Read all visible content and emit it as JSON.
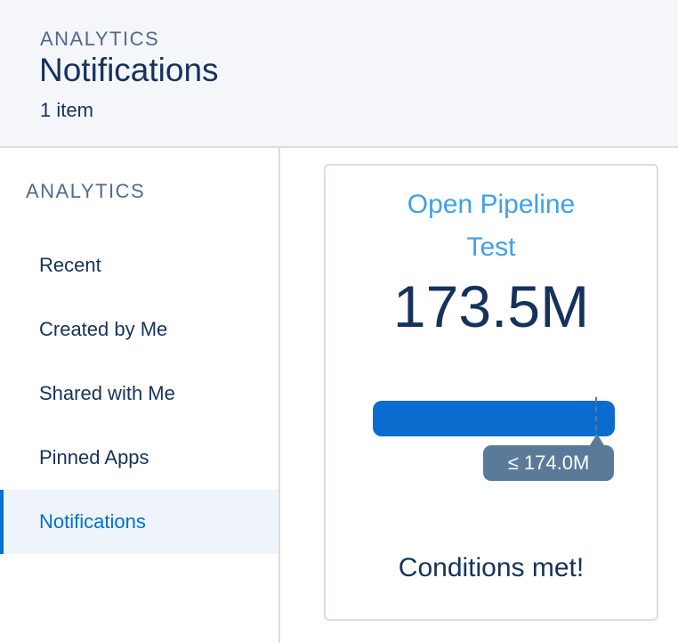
{
  "header": {
    "eyebrow": "ANALYTICS",
    "title": "Notifications",
    "count": "1 item"
  },
  "sidebar": {
    "section": "ANALYTICS",
    "items": [
      {
        "label": "Recent",
        "active": false
      },
      {
        "label": "Created by Me",
        "active": false
      },
      {
        "label": "Shared with Me",
        "active": false
      },
      {
        "label": "Pinned Apps",
        "active": false
      },
      {
        "label": "Notifications",
        "active": true
      }
    ]
  },
  "card": {
    "title_line1": "Open Pipeline",
    "title_line2": "Test",
    "value": "173.5M",
    "threshold": "≤ 174.0M",
    "status": "Conditions met!"
  },
  "colors": {
    "accent": "#0070d2",
    "link": "#3fa0e8",
    "bar": "#0a6ccf",
    "callout": "#5b7a99"
  }
}
